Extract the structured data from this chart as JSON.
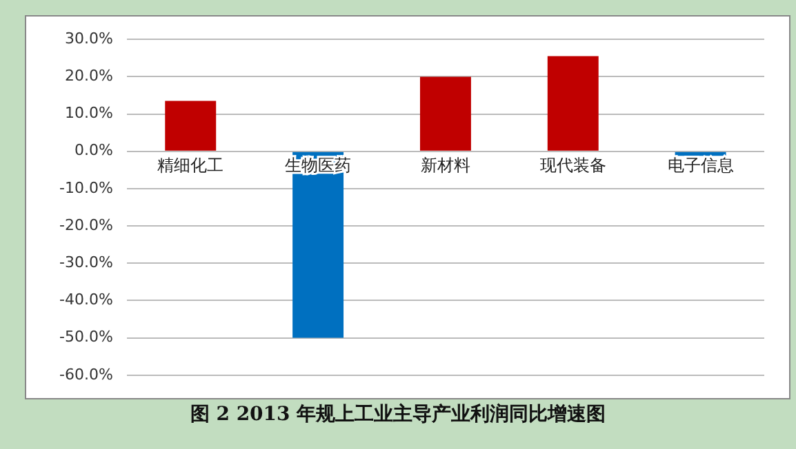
{
  "chart_data": {
    "type": "bar",
    "title": "图 2 2013 年规上工业主导产业利润同比增速图",
    "categories": [
      "精细化工",
      "生物医药",
      "新材料",
      "现代装备",
      "电子信息"
    ],
    "values": [
      13.5,
      -50,
      20,
      25.5,
      -1.2
    ],
    "colors": [
      "#c00000",
      "#0070c0",
      "#c00000",
      "#c00000",
      "#0070c0"
    ],
    "ylim": [
      -60,
      30
    ],
    "yticks": [
      {
        "value": 30,
        "label": "30.0%"
      },
      {
        "value": 20,
        "label": "20.0%"
      },
      {
        "value": 10,
        "label": "10.0%"
      },
      {
        "value": 0,
        "label": "0.0%"
      },
      {
        "value": -10,
        "label": "-10.0%"
      },
      {
        "value": -20,
        "label": "-20.0%"
      },
      {
        "value": -30,
        "label": "-30.0%"
      },
      {
        "value": -40,
        "label": "-40.0%"
      },
      {
        "value": -50,
        "label": "-50.0%"
      },
      {
        "value": -60,
        "label": "-60.0%"
      }
    ],
    "grid": "y",
    "legend": false
  }
}
